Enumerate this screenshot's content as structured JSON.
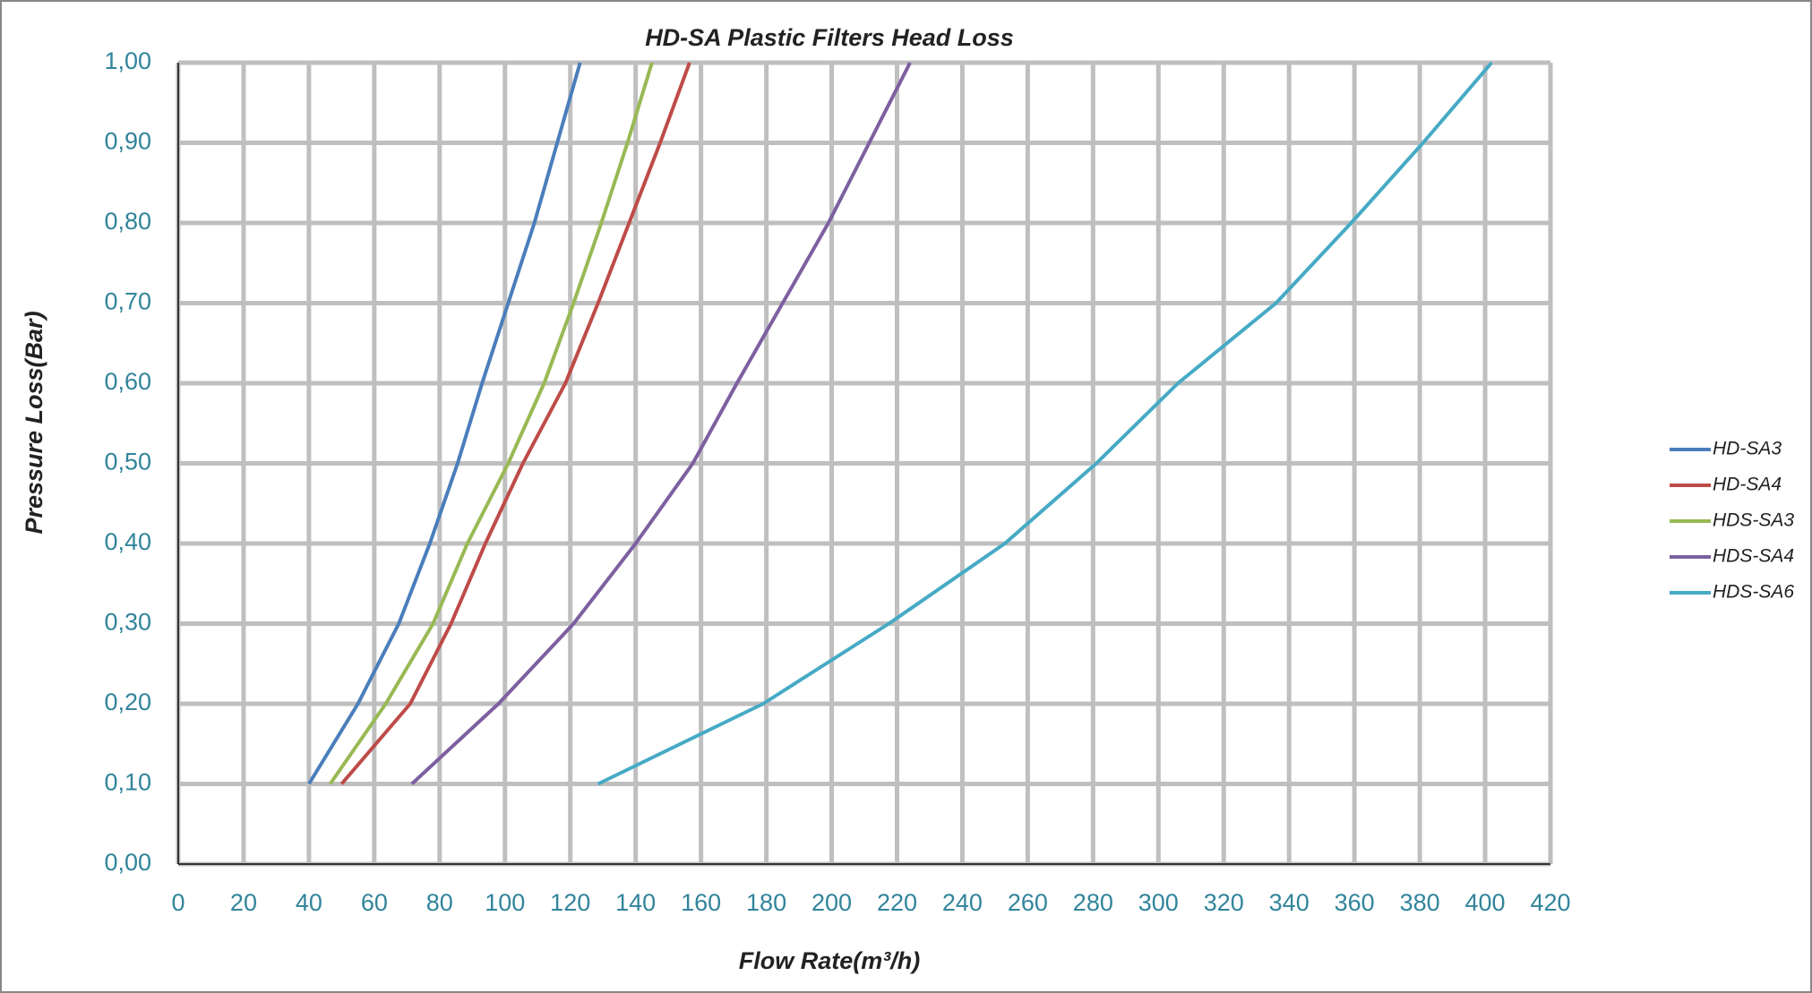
{
  "chart_data": {
    "type": "line",
    "title": "HD-SA Plastic Filters Head Loss",
    "x_label": "Flow Rate(m³/h)",
    "y_label": "Pressure Loss(Bar)",
    "xlim": [
      0,
      420
    ],
    "xticks": [
      0,
      20,
      40,
      60,
      80,
      100,
      120,
      140,
      160,
      180,
      200,
      220,
      240,
      260,
      280,
      300,
      320,
      340,
      360,
      380,
      400,
      420
    ],
    "ylim": [
      0,
      1
    ],
    "yticks": [
      {
        "value": 0,
        "label": "0,00"
      },
      {
        "value": 0.1,
        "label": "0,10"
      },
      {
        "value": 0.2,
        "label": "0,20"
      },
      {
        "value": 0.3,
        "label": "0,30"
      },
      {
        "value": 0.4,
        "label": "0,40"
      },
      {
        "value": 0.5,
        "label": "0,50"
      },
      {
        "value": 0.6,
        "label": "0,60"
      },
      {
        "value": 0.7,
        "label": "0,70"
      },
      {
        "value": 0.8,
        "label": "0,80"
      },
      {
        "value": 0.9,
        "label": "0,90"
      },
      {
        "value": 1,
        "label": "1,00"
      }
    ],
    "grid": true,
    "legend": "right",
    "series": [
      {
        "name": "HD-SA3",
        "color": "#4a7ebb",
        "x": [
          40,
          55,
          67.5,
          77,
          85.5,
          93,
          101,
          109,
          116,
          123
        ],
        "values": [
          0.1,
          0.2,
          0.3,
          0.4,
          0.5,
          0.6,
          0.7,
          0.8,
          0.9,
          1
        ]
      },
      {
        "name": "HD-SA4",
        "color": "#be4b48",
        "x": [
          50,
          71,
          83.5,
          94,
          105.5,
          118.5,
          128.5,
          138,
          147.5,
          156.5
        ],
        "values": [
          0.1,
          0.2,
          0.3,
          0.4,
          0.5,
          0.6,
          0.7,
          0.8,
          0.9,
          1
        ]
      },
      {
        "name": "HDS-SA3",
        "color": "#98b954",
        "x": [
          46.5,
          63.5,
          78,
          88.5,
          101,
          112,
          121,
          129.5,
          137.5,
          145
        ],
        "values": [
          0.1,
          0.2,
          0.3,
          0.4,
          0.5,
          0.6,
          0.7,
          0.8,
          0.9,
          1
        ]
      },
      {
        "name": "HDS-SA4",
        "color": "#7d60a0",
        "x": [
          71.5,
          98,
          121,
          140,
          157.5,
          171,
          185,
          199,
          211.5,
          224
        ],
        "values": [
          0.1,
          0.2,
          0.3,
          0.4,
          0.5,
          0.6,
          0.7,
          0.8,
          0.9,
          1
        ]
      },
      {
        "name": "HDS-SA6",
        "color": "#46aac5",
        "x": [
          128.5,
          179,
          217.5,
          253,
          281,
          306,
          336,
          359,
          381,
          402
        ],
        "values": [
          0.1,
          0.2,
          0.3,
          0.4,
          0.5,
          0.6,
          0.7,
          0.8,
          0.9,
          1
        ]
      }
    ]
  }
}
